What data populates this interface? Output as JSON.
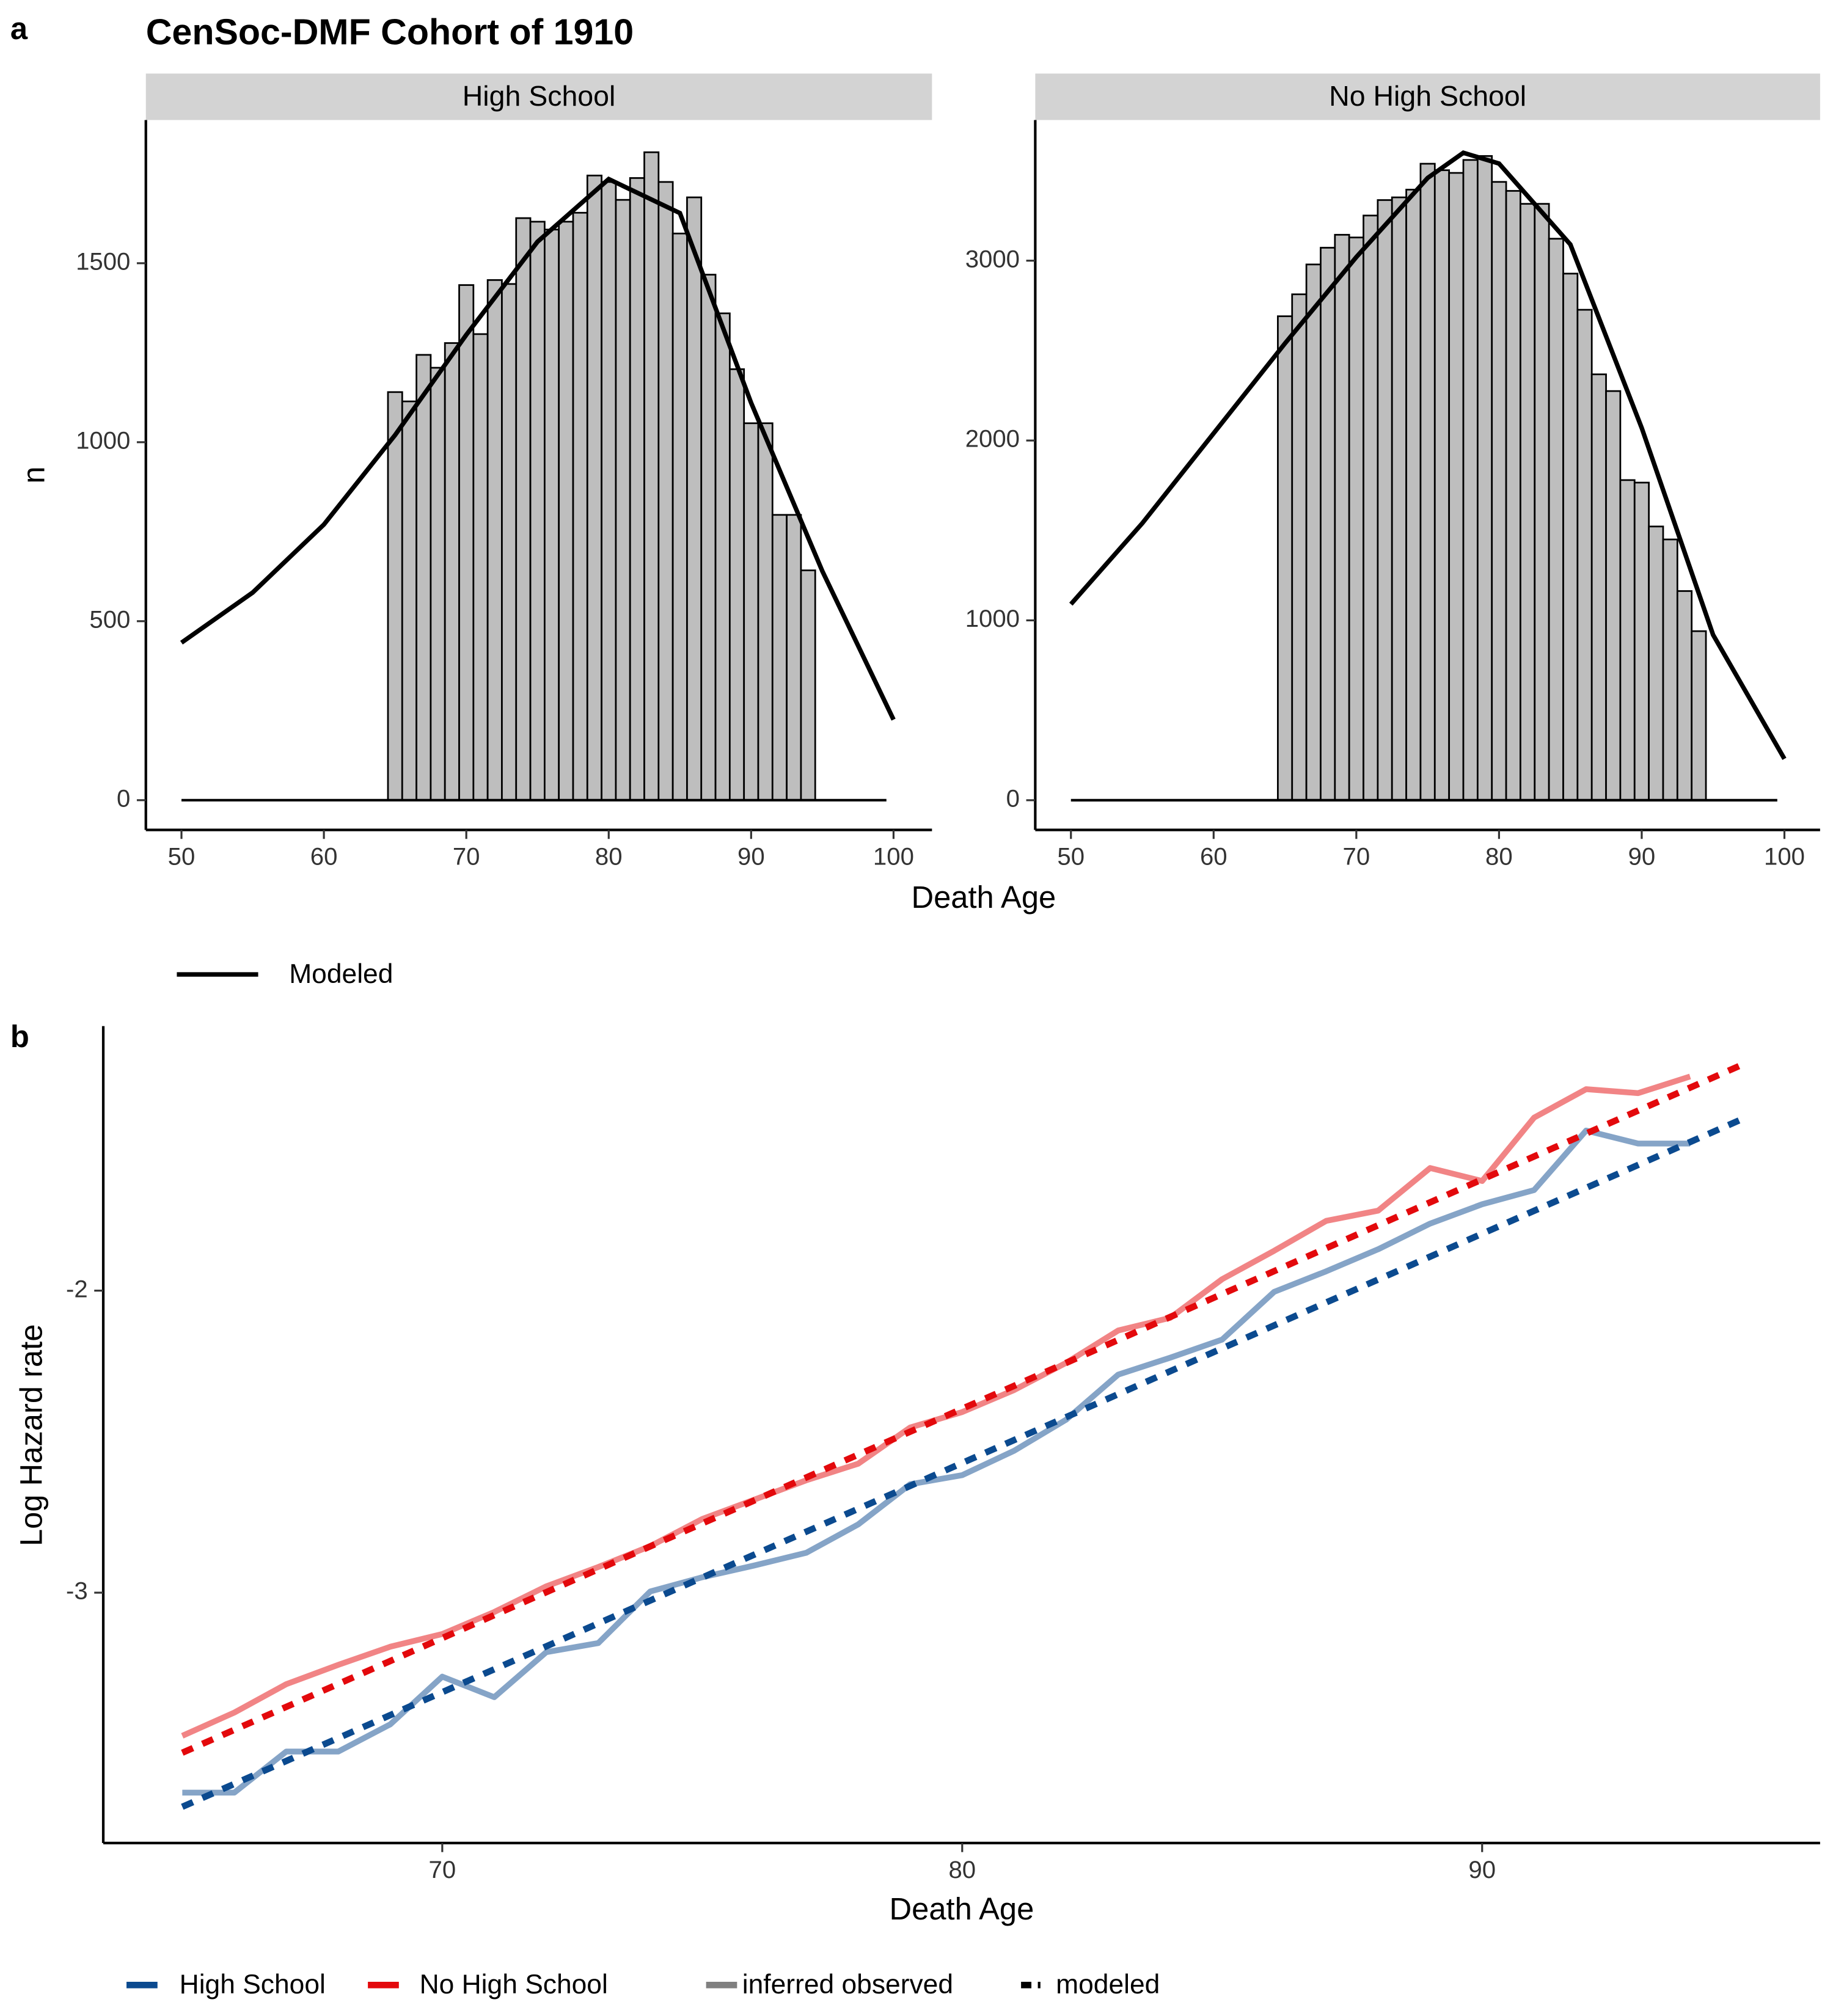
{
  "chart_data": [
    {
      "type": "histogram",
      "panel": "a",
      "title": "CenSoc-DMF Cohort of 1910",
      "facet": "High School",
      "xlabel": "Death Age",
      "ylabel": "n",
      "bins": [
        64.5,
        65.5,
        66.5,
        67.5,
        68.5,
        69.5,
        70.5,
        71.5,
        72.5,
        73.5,
        74.5,
        75.5,
        76.5,
        77.5,
        78.5,
        79.5,
        80.5,
        81.5,
        82.5,
        83.5,
        84.5,
        85.5,
        86.5,
        87.5,
        88.5,
        89.5,
        90.5,
        91.5,
        92.5,
        93.5,
        94.5
      ],
      "counts": [
        1140,
        1114,
        1244,
        1208,
        1277,
        1439,
        1302,
        1453,
        1442,
        1626,
        1616,
        1594,
        1616,
        1641,
        1745,
        1727,
        1677,
        1738,
        1810,
        1727,
        1583,
        1684,
        1468,
        1360,
        1204,
        1053,
        1053,
        797,
        797,
        642
      ],
      "bar_color": "#bebebe",
      "curve": {
        "name": "Modeled",
        "color": "#000000",
        "x": [
          50,
          55,
          60,
          65,
          70,
          75,
          80,
          85,
          90,
          95,
          100
        ],
        "values": [
          440,
          580,
          770,
          1020,
          1300,
          1560,
          1735,
          1640,
          1110,
          640,
          225
        ]
      },
      "zero_line": {
        "x": [
          50,
          99.5
        ],
        "values": [
          0,
          0
        ]
      },
      "xlim": [
        47.5,
        102.7
      ],
      "xticks": [
        50,
        60,
        70,
        80,
        90,
        100
      ],
      "ylim": [
        -83,
        1900
      ],
      "yticks": [
        0,
        500,
        1000,
        1500
      ]
    },
    {
      "type": "histogram",
      "facet": "No High School",
      "bins": [
        64.5,
        65.5,
        66.5,
        67.5,
        68.5,
        69.5,
        70.5,
        71.5,
        72.5,
        73.5,
        74.5,
        75.5,
        76.5,
        77.5,
        78.5,
        79.5,
        80.5,
        81.5,
        82.5,
        83.5,
        84.5,
        85.5,
        86.5,
        87.5,
        88.5,
        89.5,
        90.5,
        91.5,
        92.5,
        93.5,
        94.5
      ],
      "counts": [
        2691,
        2813,
        2979,
        3072,
        3144,
        3129,
        3251,
        3337,
        3352,
        3395,
        3539,
        3503,
        3488,
        3560,
        3582,
        3438,
        3388,
        3316,
        3316,
        3122,
        2928,
        2727,
        2368,
        2275,
        1780,
        1766,
        1522,
        1450,
        1163,
        940
      ],
      "bar_color": "#bebebe",
      "curve": {
        "color": "#000000",
        "x": [
          50,
          55,
          60,
          65,
          70,
          75,
          77.5,
          80,
          85,
          90,
          95,
          100
        ],
        "values": [
          1090,
          1540,
          2040,
          2540,
          3020,
          3460,
          3600,
          3540,
          3090,
          2070,
          920,
          230
        ]
      },
      "zero_line": {
        "x": [
          50,
          99.5
        ],
        "values": [
          0,
          0
        ]
      },
      "xlim": [
        47.5,
        102.5
      ],
      "xticks": [
        50,
        60,
        70,
        80,
        90,
        100
      ],
      "ylim": [
        -165,
        3782
      ],
      "yticks": [
        0,
        1000,
        2000,
        3000
      ]
    },
    {
      "type": "line",
      "panel": "b",
      "xlabel": "Death Age",
      "ylabel": "Log Hazard rate",
      "x": [
        65,
        66,
        67,
        68,
        69,
        70,
        71,
        72,
        73,
        74,
        75,
        76,
        77,
        78,
        79,
        80,
        81,
        82,
        83,
        84,
        85,
        86,
        87,
        88,
        89,
        90,
        91,
        92,
        93,
        94
      ],
      "modeled_x": [
        65,
        95
      ],
      "observed_opacity": 0.5,
      "series": [
        {
          "name": "High School",
          "color": "#0b4a8f",
          "values": [
            -3.662,
            -3.662,
            -3.526,
            -3.526,
            -3.436,
            -3.278,
            -3.346,
            -3.197,
            -3.167,
            -2.996,
            -2.949,
            -2.91,
            -2.868,
            -2.774,
            -2.641,
            -2.611,
            -2.53,
            -2.427,
            -2.278,
            -2.222,
            -2.162,
            -2.004,
            -1.936,
            -1.863,
            -1.778,
            -1.714,
            -1.667,
            -1.47,
            -1.513,
            -1.513
          ],
          "modeled": [
            -3.709,
            -1.432
          ]
        },
        {
          "name": "No High School",
          "color": "#e3090c",
          "values": [
            -3.474,
            -3.397,
            -3.303,
            -3.239,
            -3.179,
            -3.137,
            -3.064,
            -2.979,
            -2.915,
            -2.846,
            -2.756,
            -2.692,
            -2.628,
            -2.573,
            -2.453,
            -2.402,
            -2.329,
            -2.239,
            -2.132,
            -2.09,
            -1.962,
            -1.868,
            -1.769,
            -1.735,
            -1.594,
            -1.637,
            -1.427,
            -1.333,
            -1.346,
            -1.291
          ],
          "modeled": [
            -3.53,
            -1.252
          ]
        }
      ],
      "linetype_legend": [
        "inferred observed",
        "modeled"
      ],
      "xlim": [
        63.48,
        96.5
      ],
      "xticks": [
        70,
        80,
        90
      ],
      "ylim": [
        -3.829,
        -1.124
      ],
      "yticks": [
        -3,
        -2
      ]
    }
  ]
}
